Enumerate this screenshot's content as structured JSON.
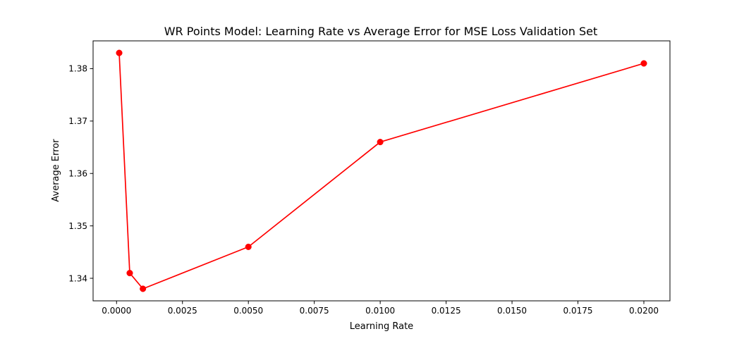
{
  "chart_data": {
    "type": "line",
    "title": "WR Points Model: Learning Rate vs Average Error for MSE Loss Validation Set",
    "xlabel": "Learning Rate",
    "ylabel": "Average Error",
    "x": [
      0.0001,
      0.0005,
      0.001,
      0.005,
      0.01,
      0.02
    ],
    "series": [
      {
        "values": [
          1.383,
          1.341,
          1.338,
          1.346,
          1.366,
          1.381
        ],
        "color": "#ff0000",
        "marker": "circle"
      }
    ],
    "xlim": [
      -0.00089,
      0.02099
    ],
    "ylim": [
      1.3357,
      1.3853
    ],
    "xticks": [
      0.0,
      0.0025,
      0.005,
      0.0075,
      0.01,
      0.0125,
      0.015,
      0.0175,
      0.02
    ],
    "xtick_labels": [
      "0.0000",
      "0.0025",
      "0.0050",
      "0.0075",
      "0.0100",
      "0.0125",
      "0.0150",
      "0.0175",
      "0.0200"
    ],
    "yticks": [
      1.34,
      1.35,
      1.36,
      1.37,
      1.38
    ],
    "ytick_labels": [
      "1.34",
      "1.35",
      "1.36",
      "1.37",
      "1.38"
    ],
    "grid": false,
    "legend": "none"
  }
}
